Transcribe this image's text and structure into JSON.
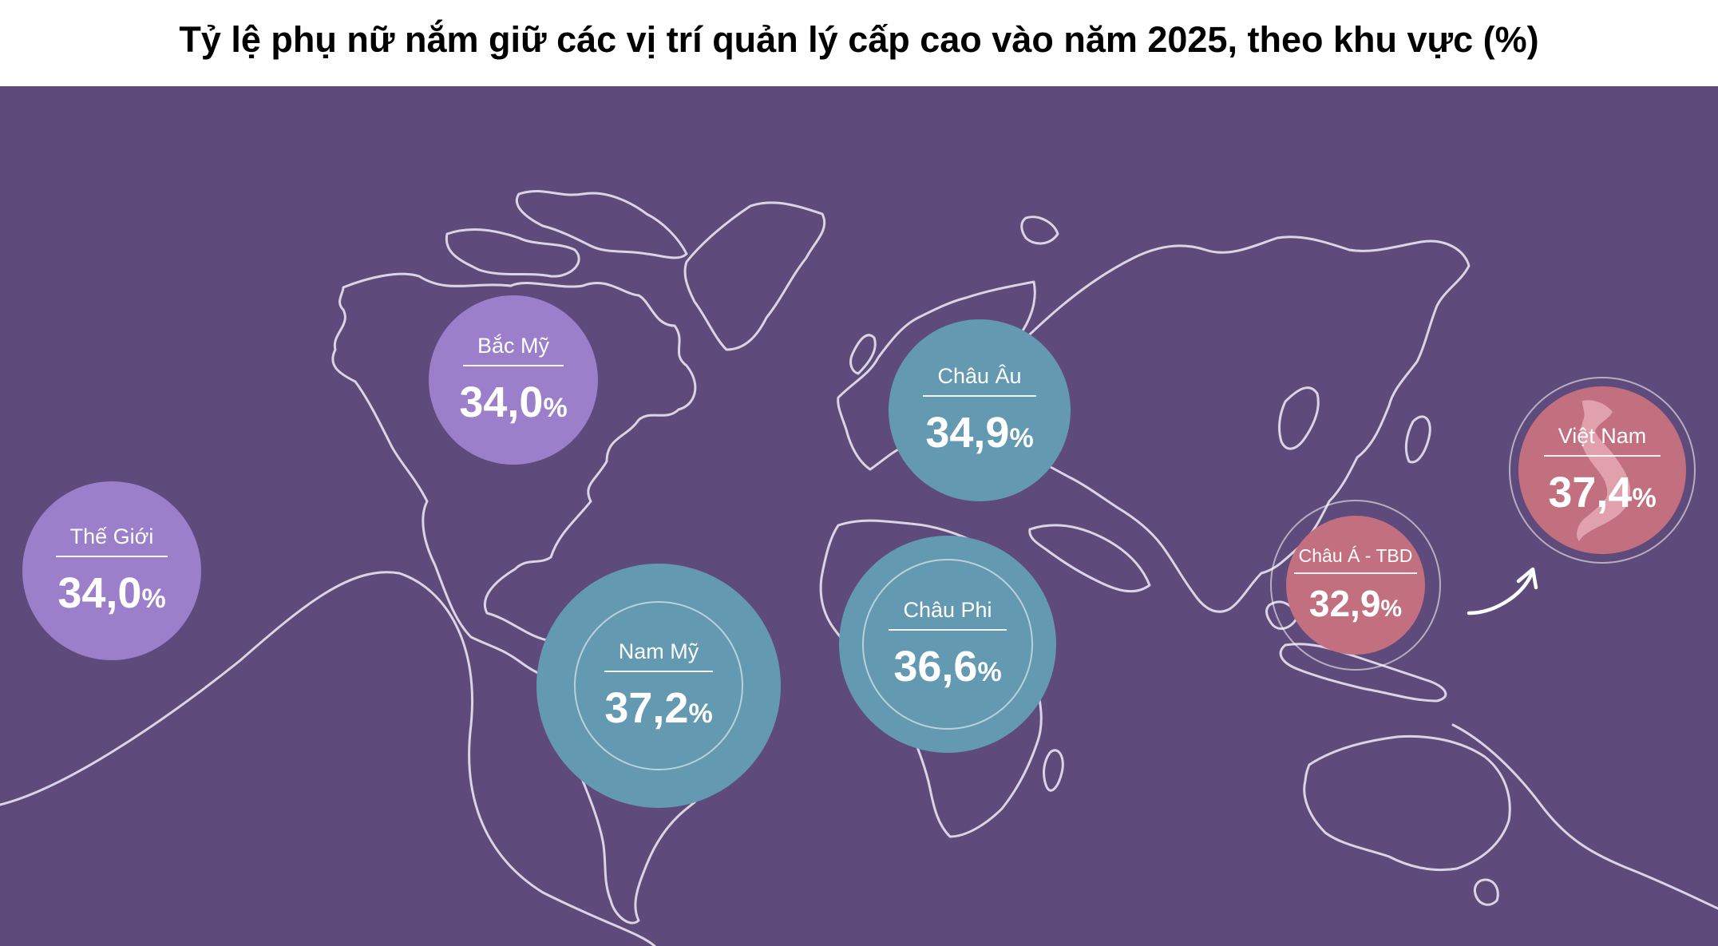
{
  "title": "Tỷ lệ phụ nữ nắm giữ các vị trí quản lý cấp cao vào năm 2025, theo khu vực (%)",
  "colors": {
    "background": "#5e4a7b",
    "purple_bubble": "#9b7fcb",
    "teal_bubble": "#6499b2",
    "pink_bubble": "#c2707f",
    "outline": "#e8e3f0"
  },
  "regions": [
    {
      "label": "Thế Giới",
      "number": "34,0",
      "unit": "%"
    },
    {
      "label": "Bắc Mỹ",
      "number": "34,0",
      "unit": "%"
    },
    {
      "label": "Nam Mỹ",
      "number": "37,2",
      "unit": "%"
    },
    {
      "label": "Châu Âu",
      "number": "34,9",
      "unit": "%"
    },
    {
      "label": "Châu Phi",
      "number": "36,6",
      "unit": "%"
    },
    {
      "label": "Châu Á - TBD",
      "number": "32,9",
      "unit": "%"
    },
    {
      "label": "Việt Nam",
      "number": "37,4",
      "unit": "%"
    }
  ],
  "icons": {
    "world_map": "world-map-outline",
    "arrow": "curved-arrow-icon",
    "vietnam_map": "vietnam-map-icon"
  }
}
